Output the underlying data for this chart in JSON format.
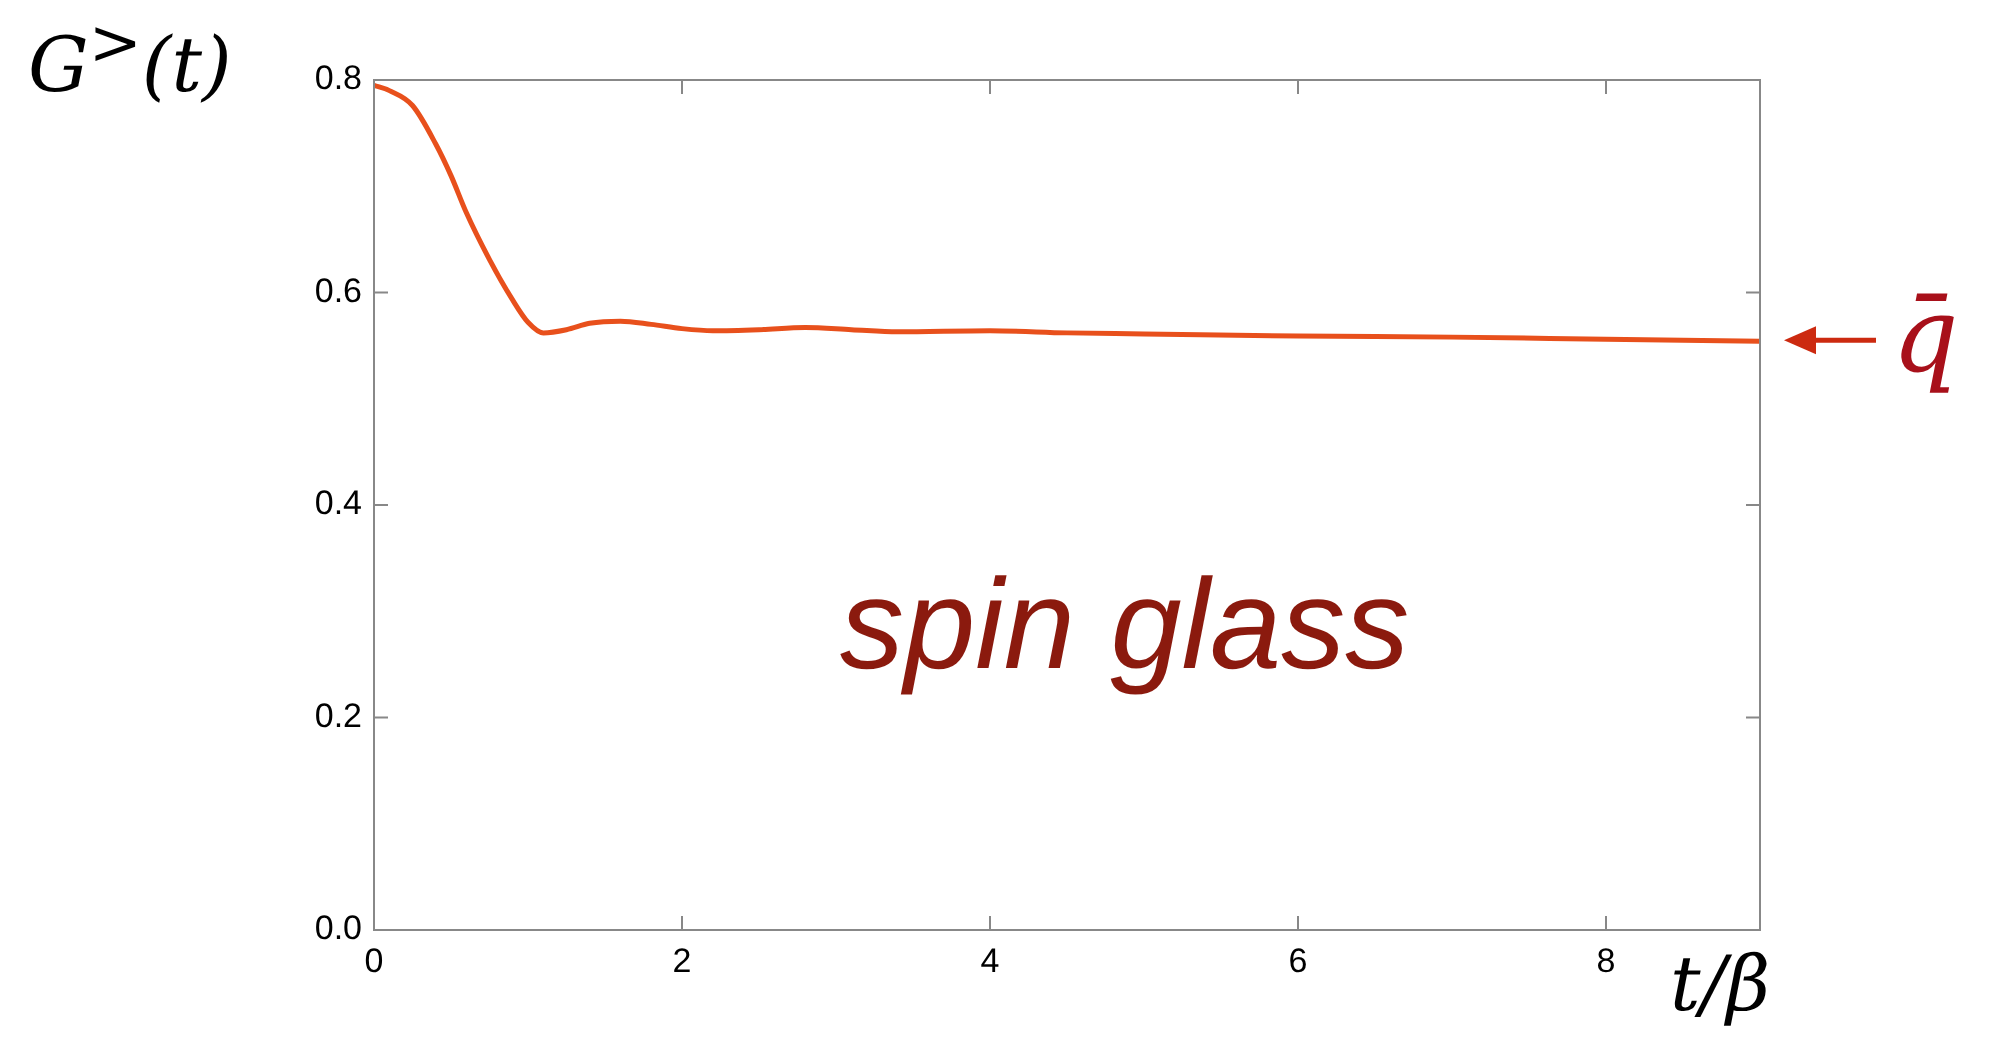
{
  "chart_data": {
    "type": "line",
    "xlabel": "t/β",
    "ylabel": "G$^{>}$(t)",
    "x": [
      0,
      0.1,
      0.25,
      0.4,
      0.5,
      0.6,
      0.75,
      0.9,
      1.0,
      1.1,
      1.25,
      1.4,
      1.6,
      1.8,
      2.0,
      2.2,
      2.5,
      2.8,
      3.1,
      3.4,
      4.0,
      4.5,
      5.0,
      6.0,
      7.0,
      8.0,
      9.0
    ],
    "series": [
      {
        "color": "#e8501c",
        "values": [
          0.795,
          0.79,
          0.776,
          0.74,
          0.71,
          0.675,
          0.631,
          0.593,
          0.572,
          0.562,
          0.565,
          0.571,
          0.573,
          0.57,
          0.566,
          0.564,
          0.565,
          0.567,
          0.565,
          0.563,
          0.564,
          0.562,
          0.561,
          0.559,
          0.558,
          0.556,
          0.554
        ]
      }
    ],
    "xlim": [
      0,
      9
    ],
    "xticks": [
      0,
      2,
      4,
      6,
      8
    ],
    "ylim": [
      0,
      0.8
    ],
    "yticks": [
      {
        "value": 0,
        "label": "0.0"
      },
      0.2,
      0.4,
      0.6,
      0.8
    ],
    "grid": false,
    "legend": false,
    "marker": "none",
    "line_style": "solid",
    "annotations": [
      {
        "text": "q̄",
        "x": 9,
        "y": 0.555
      },
      "spin glass"
    ]
  }
}
